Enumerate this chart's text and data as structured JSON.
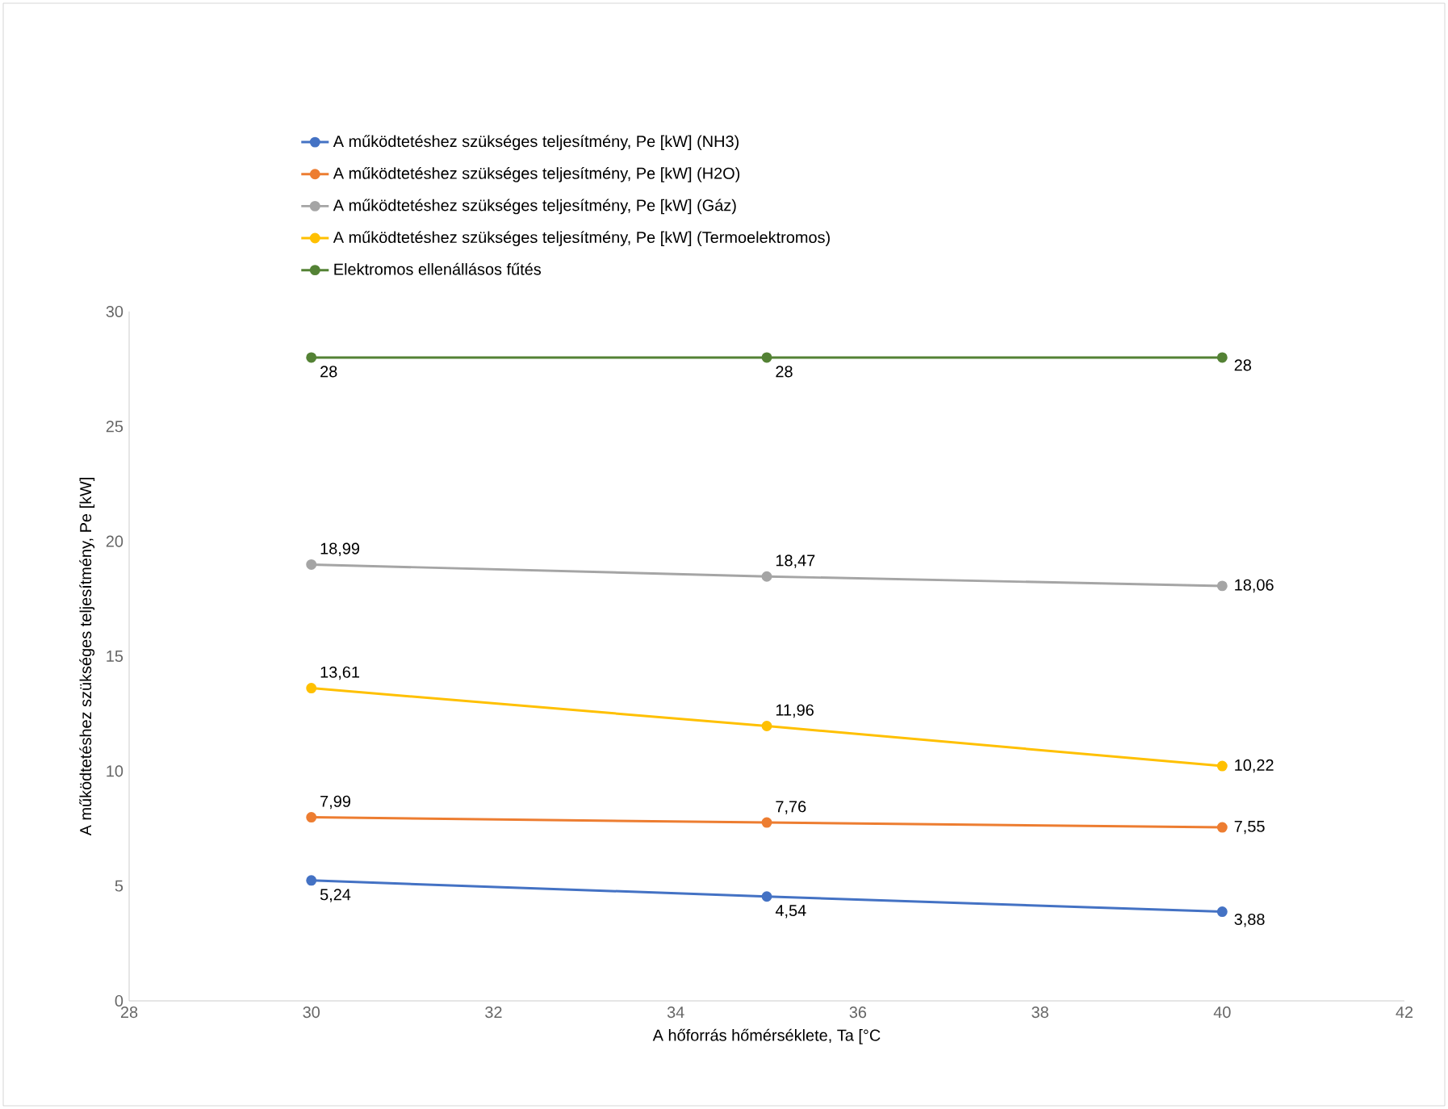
{
  "chart_data": {
    "type": "line",
    "xlabel": "A hőforrás hőmérséklete, Ta [°C",
    "ylabel": "A működtetéshez szükséges teljesítmény, Pe [kW]",
    "x": [
      30,
      35,
      40
    ],
    "xlim": [
      28,
      42
    ],
    "xticks": [
      28,
      30,
      32,
      34,
      36,
      38,
      40,
      42
    ],
    "ylim": [
      0,
      30
    ],
    "yticks": [
      0,
      5,
      10,
      15,
      20,
      25,
      30
    ],
    "legend": "top",
    "marker": "circle",
    "line_style": "solid",
    "series": [
      {
        "name": "A működtetéshez szükséges teljesítmény, Pe [kW] (NH3)",
        "color": "#4472c4",
        "values": [
          5.24,
          4.54,
          3.88
        ],
        "value_labels": [
          "5,24",
          "4,54",
          "3,88"
        ]
      },
      {
        "name": "A működtetéshez szükséges teljesítmény, Pe [kW] (H2O)",
        "color": "#ed7d31",
        "values": [
          7.99,
          7.76,
          7.55
        ],
        "value_labels": [
          "7,99",
          "7,76",
          "7,55"
        ]
      },
      {
        "name": "A működtetéshez szükséges teljesítmény, Pe [kW] (Gáz)",
        "color": "#a5a5a5",
        "values": [
          18.99,
          18.47,
          18.06
        ],
        "value_labels": [
          "18,99",
          "18,47",
          "18,06"
        ]
      },
      {
        "name": "A működtetéshez szükséges teljesítmény, Pe [kW] (Termoelektromos)",
        "color": "#ffc000",
        "values": [
          13.61,
          11.96,
          10.22
        ],
        "value_labels": [
          "13,61",
          "11,96",
          "10,22"
        ]
      },
      {
        "name": "Elektromos ellenállásos fűtés",
        "color": "#548235",
        "values": [
          28,
          28,
          28
        ],
        "value_labels": [
          "28",
          "28",
          "28"
        ]
      }
    ]
  }
}
